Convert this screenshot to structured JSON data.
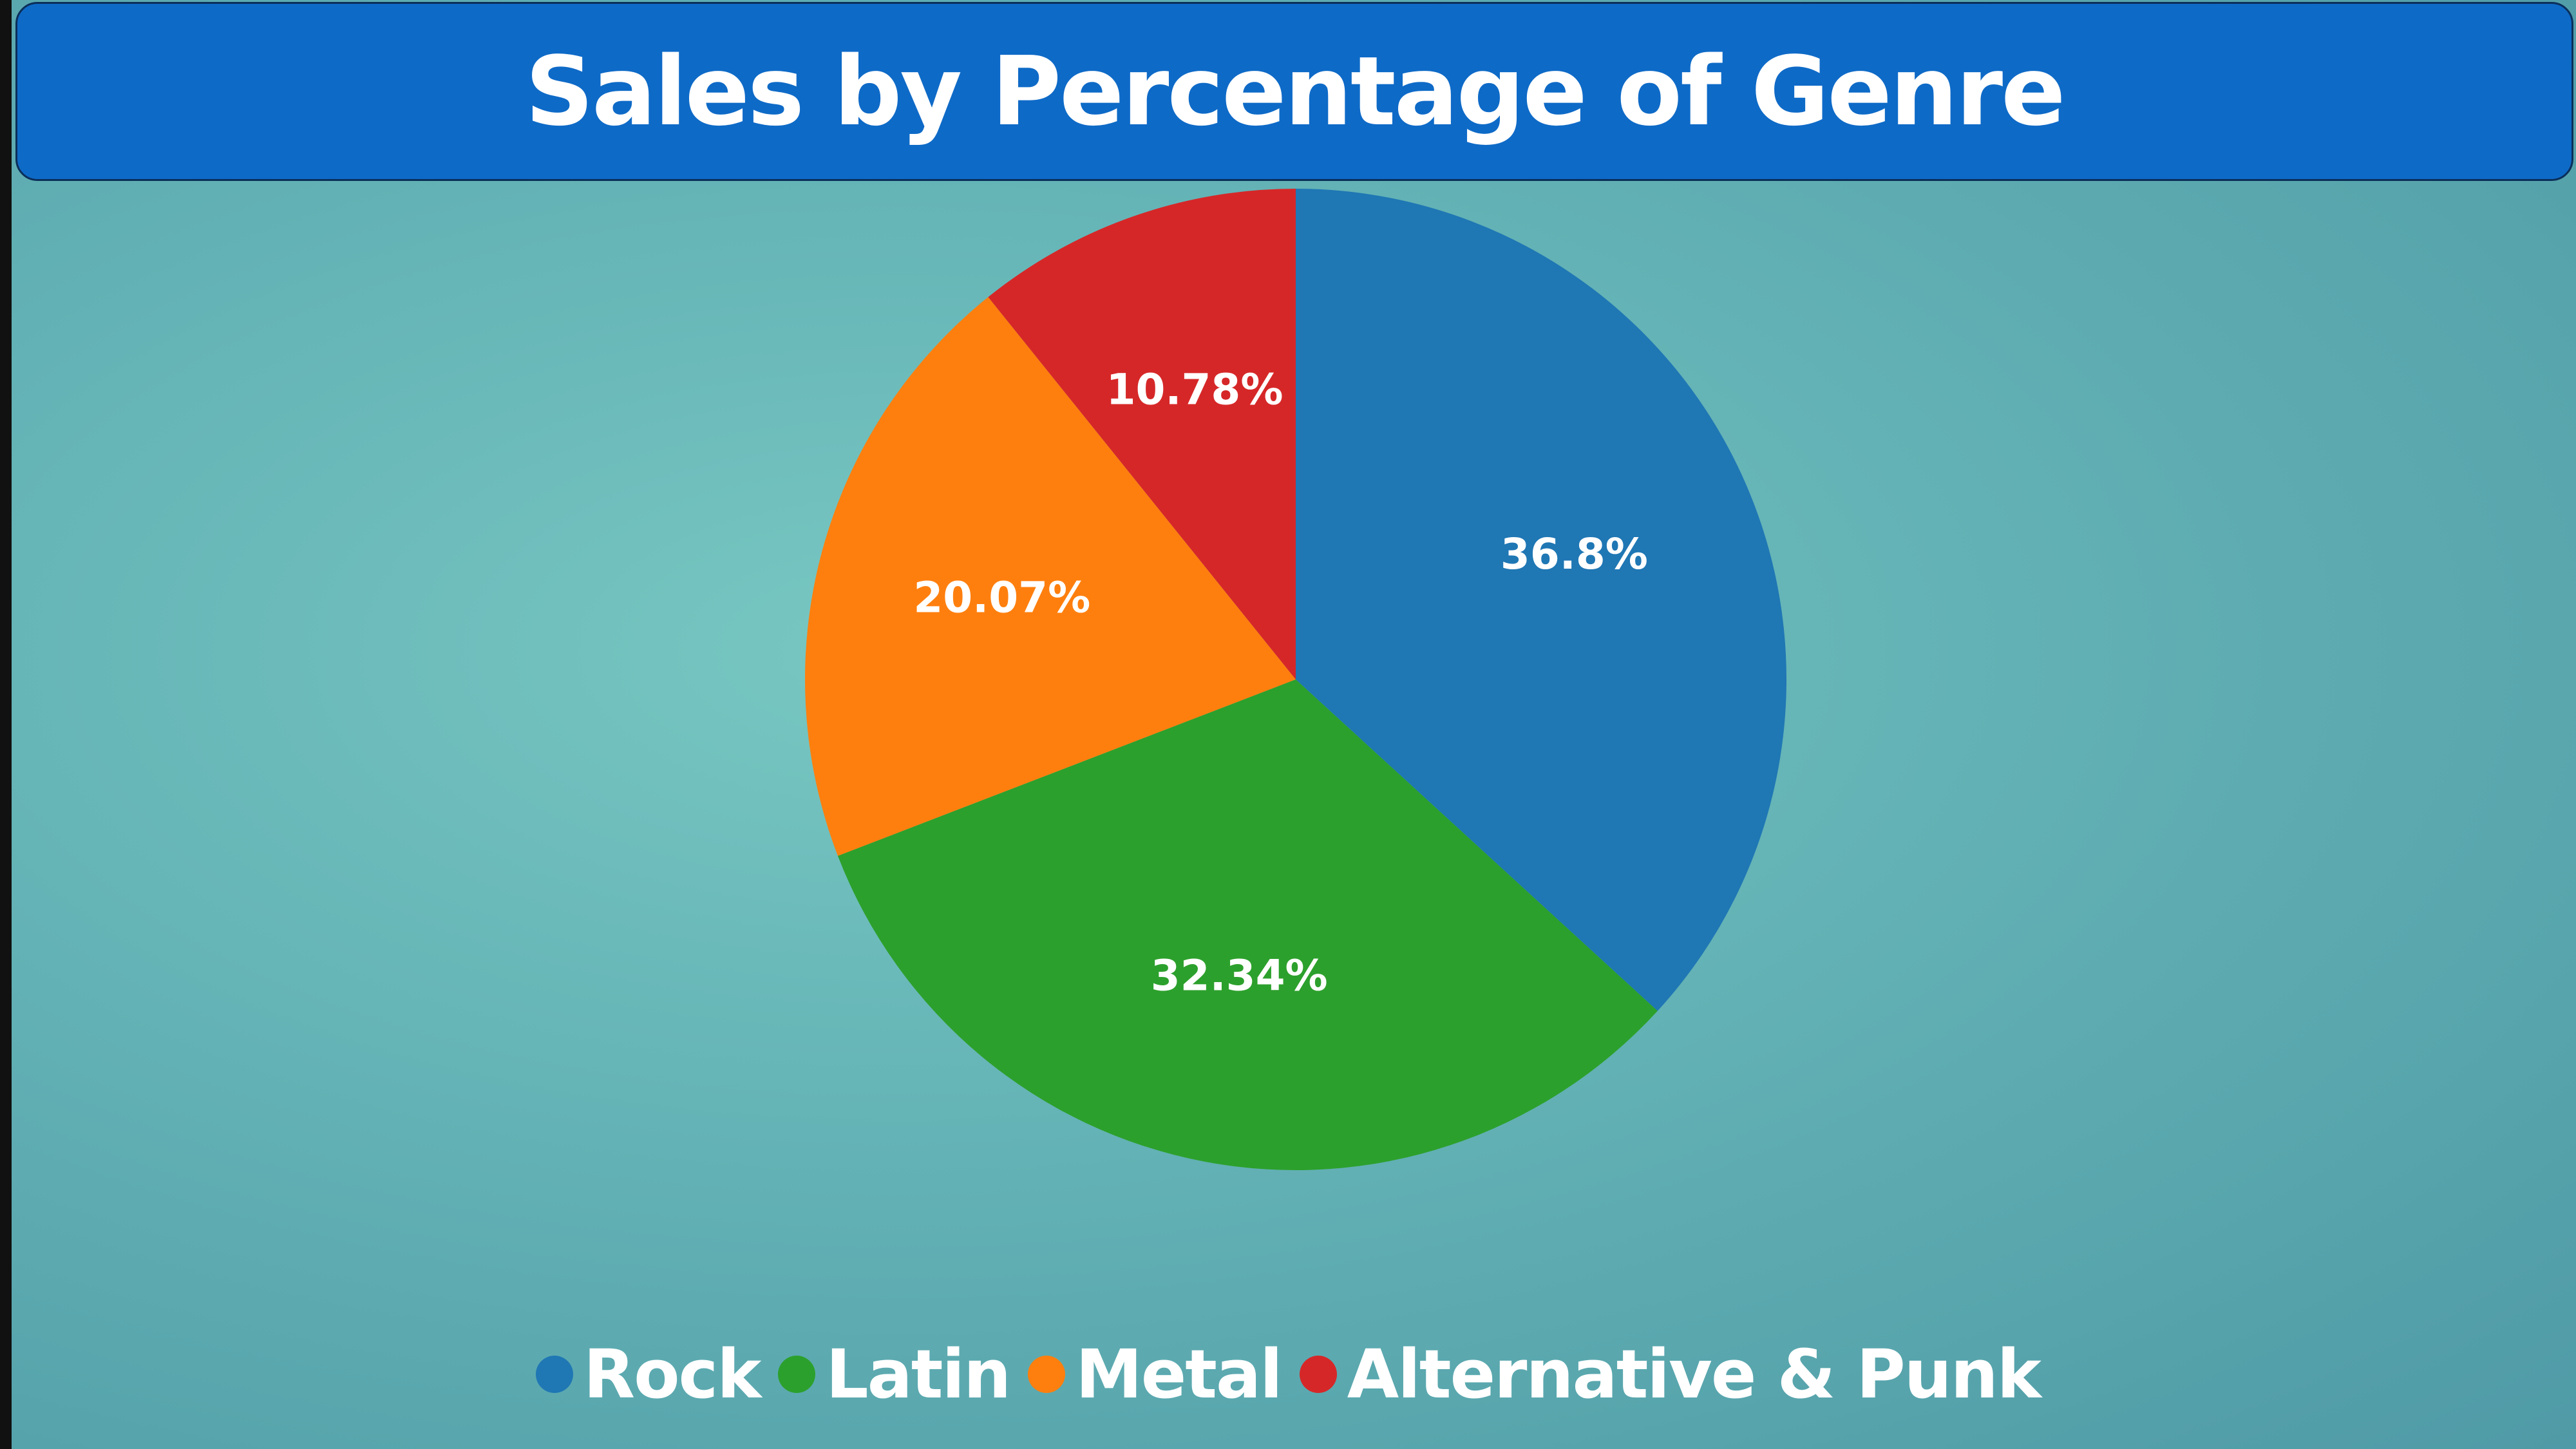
{
  "chart_data": {
    "type": "pie",
    "title": "Sales by Percentage of Genre",
    "categories": [
      "Rock",
      "Latin",
      "Metal",
      "Alternative & Punk"
    ],
    "values": [
      36.8,
      32.34,
      20.07,
      10.78
    ],
    "data_labels": [
      "36.8%",
      "32.34%",
      "20.07%",
      "10.78%"
    ],
    "colors": [
      "#1f77b4",
      "#2ca02c",
      "#ff7f0e",
      "#d62728"
    ],
    "legend_position": "bottom",
    "start_angle": "top",
    "direction": "clockwise"
  }
}
